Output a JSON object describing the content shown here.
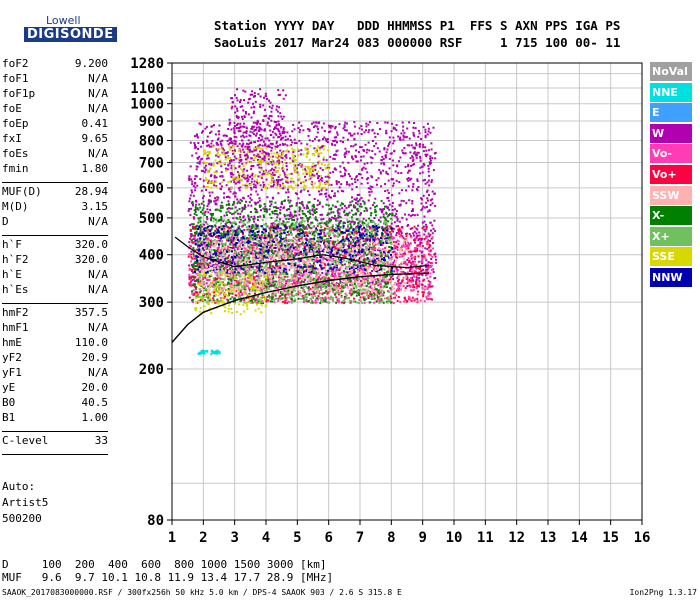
{
  "logo": {
    "line1": "Lowell",
    "line2": "DIGISONDE"
  },
  "header": {
    "line1": "Station YYYY DAY   DDD HHMMSS P1  FFS S AXN PPS IGA PS",
    "line2": "SaoLuis 2017 Mar24 083 000000 RSF     1 715 100 00- 11"
  },
  "parameters": [
    {
      "name": "foF2",
      "value": "9.200"
    },
    {
      "name": "foF1",
      "value": "N/A"
    },
    {
      "name": "foF1p",
      "value": "N/A"
    },
    {
      "name": "foE",
      "value": "N/A"
    },
    {
      "name": "foEp",
      "value": "0.41"
    },
    {
      "name": "fxI",
      "value": "9.65"
    },
    {
      "name": "foEs",
      "value": "N/A"
    },
    {
      "name": "fmin",
      "value": "1.80",
      "sep": true
    },
    {
      "name": "MUF(D)",
      "value": "28.94"
    },
    {
      "name": "M(D)",
      "value": "3.15"
    },
    {
      "name": "D",
      "value": "N/A",
      "sep": true
    },
    {
      "name": "h`F",
      "value": "320.0"
    },
    {
      "name": "h`F2",
      "value": "320.0"
    },
    {
      "name": "h`E",
      "value": "N/A"
    },
    {
      "name": "h`Es",
      "value": "N/A",
      "sep": true
    },
    {
      "name": "hmF2",
      "value": "357.5"
    },
    {
      "name": "hmF1",
      "value": "N/A"
    },
    {
      "name": "hmE",
      "value": "110.0"
    },
    {
      "name": "yF2",
      "value": "20.9"
    },
    {
      "name": "yF1",
      "value": "N/A"
    },
    {
      "name": "yE",
      "value": "20.0"
    },
    {
      "name": "B0",
      "value": "40.5"
    },
    {
      "name": "B1",
      "value": "1.00",
      "sep": true
    },
    {
      "name": "C-level",
      "value": "33",
      "sep": true
    }
  ],
  "extra": {
    "auto": "Auto:",
    "artist": "Artist5",
    "code": "500200"
  },
  "legend": [
    {
      "label": "NoVal",
      "color": "#a0a0a0"
    },
    {
      "label": "NNE",
      "color": "#00e0e0"
    },
    {
      "label": "E",
      "color": "#40a0ff"
    },
    {
      "label": "W",
      "color": "#b000b0"
    },
    {
      "label": "Vo-",
      "color": "#ff3cb4"
    },
    {
      "label": "Vo+",
      "color": "#ff0040"
    },
    {
      "label": "SSW",
      "color": "#ffb0b0"
    },
    {
      "label": "X-",
      "color": "#008000"
    },
    {
      "label": "X+",
      "color": "#70c060"
    },
    {
      "label": "SSE",
      "color": "#d8d800"
    },
    {
      "label": "NNW",
      "color": "#0000b0"
    }
  ],
  "bottom": {
    "d_line": "D     100  200  400  600  800 1000 1500 3000 [km]",
    "muf_line": "MUF   9.6  9.7 10.1 10.8 11.9 13.4 17.7 28.9 [MHz]"
  },
  "footer": {
    "left": "SAAOK_2017083000000.RSF / 300fx256h 50 kHz 5.0 km / DPS-4 SAAOK 903 / 2.6 S 315.8 E",
    "right": "Ion2Png 1.3.17"
  },
  "chart_data": {
    "type": "scatter",
    "title": "",
    "xlabel": "",
    "ylabel": "",
    "xlim": [
      1,
      16
    ],
    "ylim": [
      80,
      1280
    ],
    "yscale": "log",
    "grid": true,
    "x_ticks": [
      1,
      2,
      3,
      4,
      5,
      6,
      7,
      8,
      9,
      10,
      11,
      12,
      13,
      14,
      15,
      16
    ],
    "y_ticks": [
      80,
      200,
      300,
      400,
      500,
      600,
      700,
      800,
      900,
      1000,
      1100,
      1280
    ],
    "clusters": [
      {
        "name": "W",
        "color": "#b000b0",
        "x": [
          1.5,
          9.4
        ],
        "y": [
          330,
          900
        ]
      },
      {
        "name": "W",
        "color": "#b000b0",
        "x": [
          2.8,
          4.6
        ],
        "y": [
          600,
          1100
        ]
      },
      {
        "name": "Vo+",
        "color": "#ff0040",
        "x": [
          1.5,
          9.3
        ],
        "y": [
          300,
          480
        ]
      },
      {
        "name": "Vo-",
        "color": "#ff3cb4",
        "x": [
          1.5,
          9.3
        ],
        "y": [
          300,
          450
        ]
      },
      {
        "name": "X-",
        "color": "#008000",
        "x": [
          1.6,
          8.0
        ],
        "y": [
          300,
          560
        ]
      },
      {
        "name": "X+",
        "color": "#70c060",
        "x": [
          1.8,
          8.0
        ],
        "y": [
          300,
          500
        ]
      },
      {
        "name": "SSE",
        "color": "#d8d800",
        "x": [
          1.7,
          4.0
        ],
        "y": [
          280,
          360
        ]
      },
      {
        "name": "SSE",
        "color": "#d8d800",
        "x": [
          2.0,
          6.0
        ],
        "y": [
          600,
          780
        ]
      },
      {
        "name": "NNW",
        "color": "#0000b0",
        "x": [
          1.7,
          8.0
        ],
        "y": [
          360,
          480
        ]
      },
      {
        "name": "SSW",
        "color": "#ffb0b0",
        "x": [
          1.8,
          8.5
        ],
        "y": [
          320,
          440
        ]
      },
      {
        "name": "NNE",
        "color": "#00e0e0",
        "x": [
          1.8,
          2.1
        ],
        "y": [
          220,
          225
        ]
      },
      {
        "name": "NNE",
        "color": "#00e0e0",
        "x": [
          2.2,
          2.5
        ],
        "y": [
          220,
          225
        ]
      }
    ],
    "profile": [
      [
        1.0,
        235
      ],
      [
        1.5,
        262
      ],
      [
        2,
        282
      ],
      [
        3,
        303
      ],
      [
        4,
        318
      ],
      [
        5,
        331
      ],
      [
        6,
        342
      ],
      [
        7,
        350
      ],
      [
        8,
        355
      ],
      [
        9.2,
        357.5
      ]
    ],
    "trace": [
      [
        1.1,
        445
      ],
      [
        1.5,
        420
      ],
      [
        2,
        395
      ],
      [
        3,
        372
      ],
      [
        4,
        382
      ],
      [
        5,
        390
      ],
      [
        5.8,
        400
      ],
      [
        6.5,
        392
      ],
      [
        7.5,
        375
      ],
      [
        8.5,
        370
      ],
      [
        9.2,
        375
      ]
    ]
  }
}
